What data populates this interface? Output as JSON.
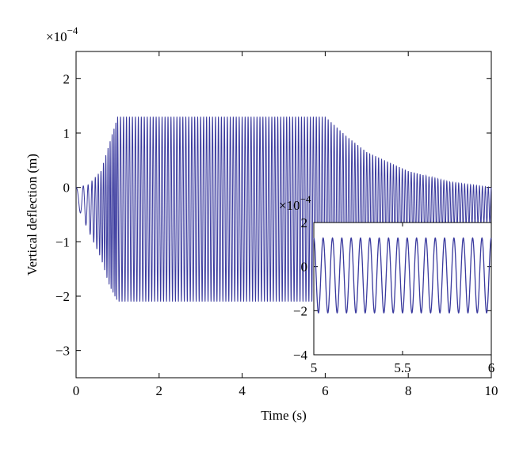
{
  "chart_data": [
    {
      "type": "line",
      "role": "main",
      "xlabel": "Time (s)",
      "ylabel": "Vertical deflection (m)",
      "y_multiplier_base": "×10",
      "y_multiplier_exponent": "−4",
      "xlim": [
        0,
        10
      ],
      "ylim": [
        -3.5,
        2.5
      ],
      "xticks": [
        0,
        2,
        4,
        6,
        8,
        10
      ],
      "xtick_labels": [
        "0",
        "2",
        "4",
        "6",
        "8",
        "10"
      ],
      "yticks": [
        -3,
        -2,
        -1,
        0,
        1,
        2
      ],
      "ytick_labels": [
        "−3",
        "−2",
        "−1",
        "0",
        "1",
        "2"
      ],
      "grid": false,
      "line_color": "#3a3a9e",
      "series": [
        {
          "description_points": [
            {
              "t": 0.0,
              "upper": 0.0,
              "lower": -0.3
            },
            {
              "t": 0.3,
              "upper": 0.05,
              "lower": -0.8
            },
            {
              "t": 0.6,
              "upper": 0.3,
              "lower": -1.3
            },
            {
              "t": 0.8,
              "upper": 0.8,
              "lower": -1.8
            },
            {
              "t": 1.0,
              "upper": 1.3,
              "lower": -2.1
            },
            {
              "t": 6.0,
              "upper": 1.3,
              "lower": -2.1
            },
            {
              "t": 6.5,
              "upper": 0.95,
              "lower": -1.7
            },
            {
              "t": 7.0,
              "upper": 0.65,
              "lower": -1.35
            },
            {
              "t": 8.0,
              "upper": 0.3,
              "lower": -0.95
            },
            {
              "t": 9.0,
              "upper": 0.1,
              "lower": -0.75
            },
            {
              "t": 10.0,
              "upper": 0.0,
              "lower": -0.65
            }
          ],
          "approx_frequency_hz": 14
        }
      ]
    },
    {
      "type": "line",
      "role": "inset",
      "xlim": [
        5,
        6
      ],
      "ylim": [
        -4,
        2
      ],
      "xticks": [
        5,
        5.5,
        6
      ],
      "xtick_labels": [
        "5",
        "5.5",
        "6"
      ],
      "yticks": [
        -4,
        -2,
        0,
        2
      ],
      "ytick_labels": [
        "−4",
        "−2",
        "0",
        "2"
      ],
      "y_multiplier_base": "×10",
      "y_multiplier_exponent": "−4",
      "series": [
        {
          "upper": 1.3,
          "lower": -2.1,
          "approx_frequency_hz": 19
        }
      ]
    }
  ]
}
